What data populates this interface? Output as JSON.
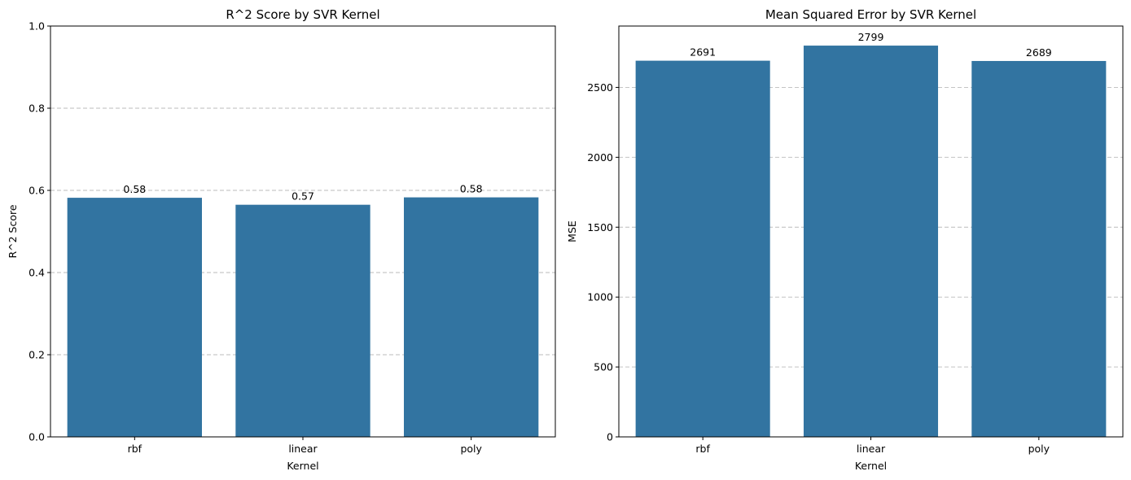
{
  "chart_data": [
    {
      "type": "bar",
      "title": "R^2 Score by SVR Kernel",
      "xlabel": "Kernel",
      "ylabel": "R^2 Score",
      "categories": [
        "rbf",
        "linear",
        "poly"
      ],
      "values": [
        0.582,
        0.565,
        0.583
      ],
      "data_labels": [
        "0.58",
        "0.57",
        "0.58"
      ],
      "ylim": [
        0,
        1.0
      ],
      "yticks": [
        0.0,
        0.2,
        0.4,
        0.6,
        0.8,
        1.0
      ],
      "ytick_labels": [
        "0.0",
        "0.2",
        "0.4",
        "0.6",
        "0.8",
        "1.0"
      ],
      "grid": "y-dashed",
      "bar_color": "#3274a1"
    },
    {
      "type": "bar",
      "title": "Mean Squared Error by SVR Kernel",
      "xlabel": "Kernel",
      "ylabel": "MSE",
      "categories": [
        "rbf",
        "linear",
        "poly"
      ],
      "values": [
        2691,
        2799,
        2689
      ],
      "data_labels": [
        "2691",
        "2799",
        "2689"
      ],
      "ylim": [
        0,
        2939
      ],
      "yticks": [
        0,
        500,
        1000,
        1500,
        2000,
        2500
      ],
      "ytick_labels": [
        "0",
        "500",
        "1000",
        "1500",
        "2000",
        "2500"
      ],
      "grid": "y-dashed",
      "bar_color": "#3274a1"
    }
  ]
}
